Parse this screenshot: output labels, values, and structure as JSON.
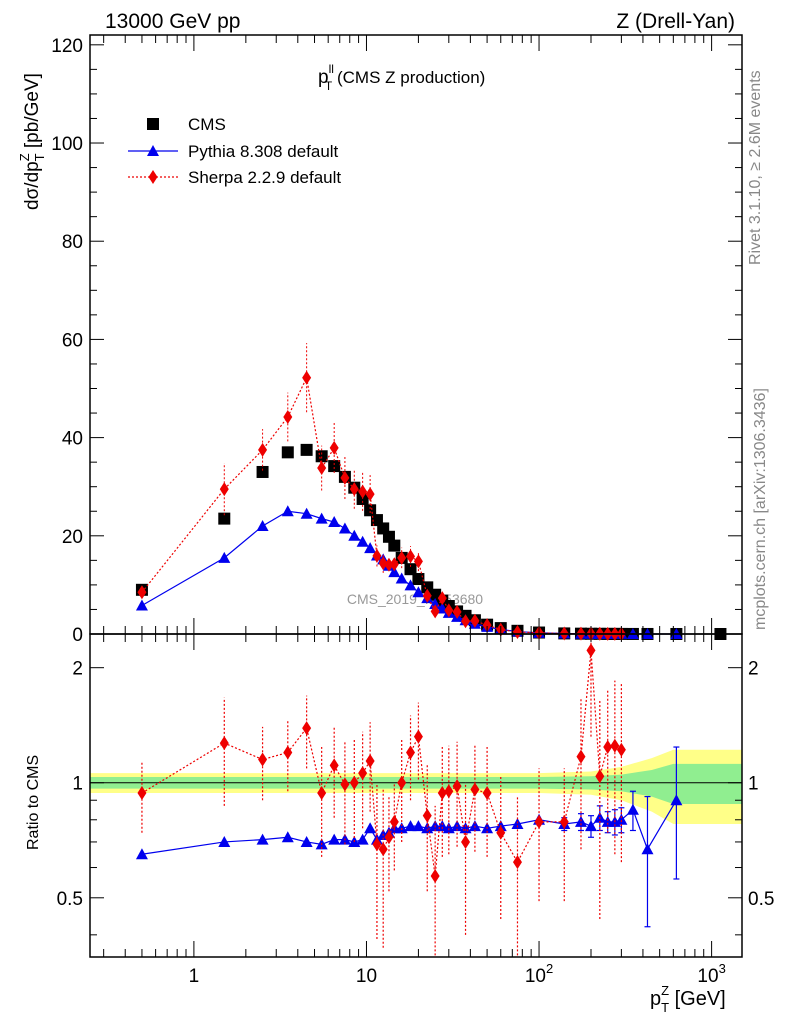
{
  "header": {
    "left": "13000 GeV pp",
    "right": "Z (Drell-Yan)"
  },
  "plot_title": {
    "main": "p",
    "sup": "ll",
    "sub": "T",
    "rest": " (CMS Z production)"
  },
  "side_labels": {
    "rivet": "Rivet 3.1.10, ≥ 2.6M events",
    "mcplots": "mcplots.cern.ch [arXiv:1306.3436]"
  },
  "watermark": "CMS_2019_I1753680",
  "axes": {
    "ylabel_main": "dσ/dp",
    "ylabel_main_sub": "T",
    "ylabel_main_sup": "Z",
    "ylabel_main_unit": " [pb/GeV]",
    "ylabel_ratio": "Ratio to CMS",
    "xlabel": "p",
    "xlabel_sub": "T",
    "xlabel_sup": "Z",
    "xlabel_unit": " [GeV]",
    "main_ticks": [
      "0",
      "20",
      "40",
      "60",
      "80",
      "100",
      "120"
    ],
    "ratio_ticks": [
      "0.5",
      "1",
      "2"
    ],
    "x_ticks": [
      {
        "base": "1",
        "exp": ""
      },
      {
        "base": "10",
        "exp": ""
      },
      {
        "base": "10",
        "exp": "2"
      },
      {
        "base": "10",
        "exp": "3"
      }
    ]
  },
  "chart_data": {
    "type": "scatter",
    "x_scale": "log",
    "xlim": [
      0.25,
      1500
    ],
    "ylim_main": [
      0,
      122
    ],
    "ylim_ratio": [
      0.35,
      2.45
    ],
    "ratio_scale": "log",
    "legend_position": "top-left",
    "series": [
      {
        "name": "CMS",
        "color": "#000000",
        "marker": "square",
        "x": [
          0.5,
          1.5,
          2.5,
          3.5,
          4.5,
          5.5,
          6.5,
          7.5,
          8.5,
          9.5,
          10.5,
          11.5,
          12.5,
          13.5,
          14.5,
          16,
          18,
          20,
          22.5,
          25,
          27.5,
          30,
          33.5,
          37.5,
          42.5,
          50,
          60,
          75,
          100,
          140,
          175,
          200,
          225,
          250,
          275,
          300,
          350,
          425,
          625,
          1125
        ],
        "y": [
          9.0,
          23.5,
          33.0,
          37.0,
          37.5,
          36.2,
          34.2,
          32.0,
          29.8,
          27.5,
          25.2,
          23.2,
          21.5,
          19.8,
          18.0,
          15.5,
          13.2,
          11.2,
          9.5,
          8.0,
          6.8,
          5.7,
          4.6,
          3.7,
          2.8,
          1.9,
          1.2,
          0.65,
          0.3,
          0.12,
          0.07,
          0.05,
          0.04,
          0.03,
          0.025,
          0.02,
          0.012,
          0.007,
          0.002,
          0.0003
        ]
      },
      {
        "name": "Pythia 8.308 default",
        "color": "#0000ee",
        "marker": "triangle",
        "line": "solid",
        "x": [
          0.5,
          1.5,
          2.5,
          3.5,
          4.5,
          5.5,
          6.5,
          7.5,
          8.5,
          9.5,
          10.5,
          11.5,
          12.5,
          13.5,
          14.5,
          16,
          18,
          20,
          22.5,
          25,
          27.5,
          30,
          33.5,
          37.5,
          42.5,
          50,
          60,
          75,
          100,
          140,
          175,
          200,
          225,
          250,
          275,
          300,
          350,
          425,
          625
        ],
        "y": [
          5.8,
          15.5,
          22.0,
          25.0,
          24.5,
          23.5,
          22.8,
          21.5,
          20.0,
          18.8,
          17.5,
          16.0,
          15.2,
          13.9,
          12.6,
          11.3,
          9.9,
          8.5,
          7.3,
          6.1,
          5.2,
          4.3,
          3.5,
          2.8,
          2.1,
          1.45,
          0.92,
          0.5,
          0.24,
          0.095,
          0.055,
          0.038,
          0.032,
          0.024,
          0.02,
          0.016,
          0.01,
          0.0046,
          0.0018
        ],
        "ratio": [
          0.65,
          0.7,
          0.71,
          0.72,
          0.7,
          0.69,
          0.71,
          0.71,
          0.7,
          0.71,
          0.76,
          0.71,
          0.73,
          0.74,
          0.76,
          0.76,
          0.77,
          0.77,
          0.76,
          0.77,
          0.77,
          0.76,
          0.77,
          0.76,
          0.77,
          0.76,
          0.77,
          0.78,
          0.8,
          0.78,
          0.79,
          0.77,
          0.81,
          0.79,
          0.79,
          0.8,
          0.85,
          0.67,
          0.9
        ],
        "ratio_err": [
          0.012,
          0.01,
          0.01,
          0.01,
          0.01,
          0.01,
          0.01,
          0.01,
          0.01,
          0.01,
          0.015,
          0.01,
          0.01,
          0.012,
          0.012,
          0.012,
          0.012,
          0.012,
          0.012,
          0.012,
          0.012,
          0.012,
          0.012,
          0.012,
          0.012,
          0.012,
          0.015,
          0.015,
          0.015,
          0.03,
          0.04,
          0.05,
          0.06,
          0.05,
          0.06,
          0.06,
          0.1,
          0.25,
          0.34
        ]
      },
      {
        "name": "Sherpa 2.2.9 default",
        "color": "#ee0000",
        "marker": "diamond",
        "line": "dotted",
        "x": [
          0.5,
          1.5,
          2.5,
          3.5,
          4.5,
          5.5,
          6.5,
          7.5,
          8.5,
          9.5,
          10.5,
          11.5,
          12.5,
          13.5,
          14.5,
          16,
          18,
          20,
          22.5,
          25,
          27.5,
          30,
          33.5,
          37.5,
          42.5,
          50,
          60,
          75,
          100,
          140,
          175,
          200,
          225,
          250,
          275,
          300
        ],
        "y": [
          8.5,
          29.5,
          37.5,
          44.2,
          52.2,
          33.8,
          37.9,
          31.8,
          29.5,
          29.0,
          28.5,
          15.9,
          14.4,
          14.1,
          14.2,
          15.5,
          15.8,
          14.8,
          7.8,
          4.6,
          7.3,
          4.8,
          4.5,
          2.6,
          2.7,
          1.8,
          0.9,
          0.4,
          0.25,
          0.09,
          0.085,
          0.11,
          0.045,
          0.034,
          0.032,
          0.03
        ],
        "ratio": [
          0.94,
          1.27,
          1.15,
          1.2,
          1.39,
          0.94,
          1.11,
          0.99,
          1.0,
          1.06,
          1.14,
          0.69,
          0.67,
          0.72,
          0.79,
          1.0,
          1.2,
          1.32,
          0.82,
          0.57,
          0.94,
          0.95,
          0.98,
          0.7,
          0.96,
          0.94,
          0.74,
          0.62,
          0.79,
          0.79,
          1.17,
          2.22,
          1.04,
          1.24,
          1.25,
          1.22
        ],
        "ratio_err": [
          0.2,
          0.4,
          0.25,
          0.25,
          0.3,
          0.3,
          0.3,
          0.3,
          0.3,
          0.3,
          0.3,
          0.3,
          0.3,
          0.2,
          0.2,
          0.3,
          0.3,
          0.3,
          0.3,
          0.3,
          0.3,
          0.3,
          0.3,
          0.3,
          0.3,
          0.3,
          0.3,
          0.3,
          0.3,
          0.3,
          0.5,
          0.9,
          0.6,
          0.5,
          0.6,
          0.6
        ]
      }
    ],
    "data_band": {
      "x_edges": [
        0.25,
        1,
        10,
        100,
        200,
        300,
        450,
        600,
        1500
      ],
      "inner": [
        0.035,
        0.035,
        0.035,
        0.035,
        0.04,
        0.05,
        0.08,
        0.12,
        0.12
      ],
      "outer": [
        0.06,
        0.06,
        0.06,
        0.06,
        0.07,
        0.1,
        0.16,
        0.22,
        0.22
      ]
    }
  }
}
